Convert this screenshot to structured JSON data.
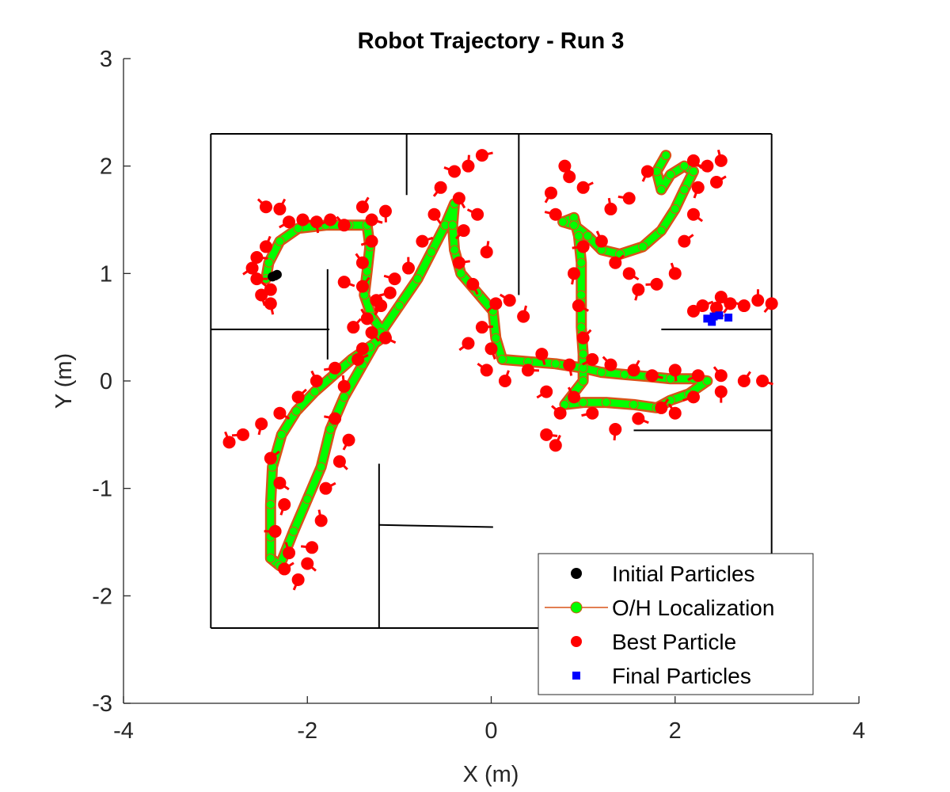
{
  "chart_data": {
    "type": "scatter",
    "title": "Robot Trajectory - Run 3",
    "xlabel": "X (m)",
    "ylabel": "Y (m)",
    "xlim": [
      -4,
      4
    ],
    "ylim": [
      -3,
      3
    ],
    "x_ticks": [
      -4,
      -2,
      0,
      2,
      4
    ],
    "y_ticks": [
      -3,
      -2,
      -1,
      0,
      1,
      2,
      3
    ],
    "x_tick_labels": [
      "-4",
      "-2",
      "0",
      "2",
      "4"
    ],
    "y_tick_labels": [
      "-3",
      "-2",
      "-1",
      "0",
      "1",
      "2",
      "3"
    ],
    "grid": false,
    "legend_position": "bottom-right",
    "legend": [
      {
        "label": "Initial Particles",
        "marker": "circle",
        "color": "#000000"
      },
      {
        "label": "O/H Localization",
        "marker": "circle-line",
        "color": "#00ff00",
        "line_color": "#d95319"
      },
      {
        "label": "Best Particle",
        "marker": "circle",
        "color": "#ff0000"
      },
      {
        "label": "Final Particles",
        "marker": "square",
        "color": "#0000ff"
      }
    ],
    "map_walls": [
      [
        [
          -3.05,
          2.3
        ],
        [
          3.05,
          2.3
        ]
      ],
      [
        [
          3.05,
          2.3
        ],
        [
          3.05,
          -2.3
        ]
      ],
      [
        [
          3.05,
          -2.3
        ],
        [
          -3.05,
          -2.3
        ]
      ],
      [
        [
          -3.05,
          -2.3
        ],
        [
          -3.05,
          2.3
        ]
      ],
      [
        [
          -0.92,
          2.3
        ],
        [
          -0.92,
          1.73
        ]
      ],
      [
        [
          0.3,
          2.3
        ],
        [
          0.3,
          0.8
        ]
      ],
      [
        [
          -3.05,
          0.48
        ],
        [
          -1.76,
          0.48
        ]
      ],
      [
        [
          -1.78,
          1.04
        ],
        [
          -1.78,
          0.2
        ]
      ],
      [
        [
          1.85,
          0.48
        ],
        [
          3.05,
          0.48
        ]
      ],
      [
        [
          1.55,
          -0.46
        ],
        [
          3.05,
          -0.46
        ]
      ],
      [
        [
          -1.22,
          -0.77
        ],
        [
          -1.22,
          -2.3
        ]
      ],
      [
        [
          -1.22,
          -1.34
        ],
        [
          0.02,
          -1.36
        ]
      ]
    ],
    "series": [
      {
        "name": "Initial Particles",
        "points": [
          [
            -2.35,
            0.98
          ],
          [
            -2.38,
            0.97
          ],
          [
            -2.33,
            0.99
          ]
        ]
      },
      {
        "name": "O/H Localization",
        "points": [
          [
            -2.45,
            0.95
          ],
          [
            -2.42,
            1.1
          ],
          [
            -2.3,
            1.3
          ],
          [
            -2.1,
            1.42
          ],
          [
            -1.8,
            1.45
          ],
          [
            -1.55,
            1.45
          ],
          [
            -1.35,
            1.45
          ],
          [
            -1.32,
            1.25
          ],
          [
            -1.35,
            1.02
          ],
          [
            -1.38,
            0.8
          ],
          [
            -1.3,
            0.6
          ],
          [
            -1.15,
            0.42
          ],
          [
            -1.32,
            0.32
          ],
          [
            -1.52,
            0.2
          ],
          [
            -1.72,
            0.05
          ],
          [
            -1.92,
            -0.1
          ],
          [
            -2.12,
            -0.28
          ],
          [
            -2.28,
            -0.5
          ],
          [
            -2.38,
            -0.8
          ],
          [
            -2.4,
            -1.15
          ],
          [
            -2.4,
            -1.45
          ],
          [
            -2.4,
            -1.65
          ],
          [
            -2.3,
            -1.72
          ],
          [
            -2.15,
            -1.4
          ],
          [
            -2.0,
            -1.1
          ],
          [
            -1.85,
            -0.8
          ],
          [
            -1.75,
            -0.45
          ],
          [
            -1.6,
            -0.15
          ],
          [
            -1.4,
            0.15
          ],
          [
            -1.2,
            0.45
          ],
          [
            -1.0,
            0.7
          ],
          [
            -0.8,
            0.95
          ],
          [
            -0.65,
            1.2
          ],
          [
            -0.5,
            1.45
          ],
          [
            -0.4,
            1.65
          ],
          [
            -0.42,
            1.45
          ],
          [
            -0.4,
            1.22
          ],
          [
            -0.33,
            1.0
          ],
          [
            -0.15,
            0.82
          ],
          [
            0.02,
            0.65
          ],
          [
            0.05,
            0.4
          ],
          [
            0.12,
            0.2
          ],
          [
            0.4,
            0.18
          ],
          [
            0.7,
            0.16
          ],
          [
            1.0,
            0.12
          ],
          [
            1.2,
            0.08
          ],
          [
            1.45,
            0.06
          ],
          [
            1.72,
            0.04
          ],
          [
            1.95,
            0.02
          ],
          [
            2.2,
            0.02
          ],
          [
            2.35,
            0.0
          ],
          [
            2.15,
            -0.12
          ],
          [
            1.95,
            -0.18
          ],
          [
            1.8,
            -0.25
          ],
          [
            1.55,
            -0.22
          ],
          [
            1.25,
            -0.2
          ],
          [
            1.0,
            -0.2
          ],
          [
            0.8,
            -0.22
          ],
          [
            1.0,
            0.0
          ],
          [
            1.0,
            0.25
          ],
          [
            0.98,
            0.5
          ],
          [
            0.98,
            0.8
          ],
          [
            0.98,
            1.1
          ],
          [
            0.95,
            1.35
          ],
          [
            0.9,
            1.52
          ],
          [
            0.78,
            1.48
          ],
          [
            0.9,
            1.45
          ],
          [
            1.05,
            1.35
          ],
          [
            1.2,
            1.22
          ],
          [
            1.4,
            1.18
          ],
          [
            1.65,
            1.25
          ],
          [
            1.85,
            1.4
          ],
          [
            2.0,
            1.6
          ],
          [
            2.1,
            1.78
          ],
          [
            2.2,
            1.95
          ],
          [
            2.1,
            2.0
          ],
          [
            1.95,
            1.92
          ],
          [
            1.85,
            1.78
          ],
          [
            1.8,
            1.95
          ],
          [
            1.9,
            2.1
          ]
        ]
      },
      {
        "name": "Best Particle",
        "points": [
          [
            -2.55,
            0.95
          ],
          [
            -2.5,
            0.8
          ],
          [
            -2.6,
            1.05
          ],
          [
            -2.4,
            0.85
          ],
          [
            -2.45,
            1.25
          ],
          [
            -2.55,
            1.15
          ],
          [
            -2.4,
            0.72
          ],
          [
            -2.2,
            1.48
          ],
          [
            -2.45,
            1.62
          ],
          [
            -2.3,
            1.6
          ],
          [
            -2.05,
            1.5
          ],
          [
            -1.9,
            1.48
          ],
          [
            -1.75,
            1.5
          ],
          [
            -1.6,
            1.45
          ],
          [
            -1.4,
            1.62
          ],
          [
            -1.3,
            1.5
          ],
          [
            -1.15,
            1.58
          ],
          [
            -1.3,
            1.3
          ],
          [
            -1.4,
            1.1
          ],
          [
            -1.4,
            0.88
          ],
          [
            -1.6,
            0.92
          ],
          [
            -1.25,
            0.75
          ],
          [
            -1.1,
            0.82
          ],
          [
            -1.35,
            0.58
          ],
          [
            -1.5,
            0.5
          ],
          [
            -1.15,
            0.4
          ],
          [
            -1.4,
            0.3
          ],
          [
            -1.7,
            0.12
          ],
          [
            -1.9,
            0.0
          ],
          [
            -2.1,
            -0.15
          ],
          [
            -2.3,
            -0.3
          ],
          [
            -2.5,
            -0.4
          ],
          [
            -2.7,
            -0.5
          ],
          [
            -2.85,
            -0.57
          ],
          [
            -2.4,
            -0.72
          ],
          [
            -2.3,
            -0.95
          ],
          [
            -2.25,
            -1.15
          ],
          [
            -2.35,
            -1.4
          ],
          [
            -2.2,
            -1.6
          ],
          [
            -2.25,
            -1.75
          ],
          [
            -2.0,
            -1.7
          ],
          [
            -2.1,
            -1.85
          ],
          [
            -1.95,
            -1.55
          ],
          [
            -1.85,
            -1.3
          ],
          [
            -1.8,
            -1.0
          ],
          [
            -1.65,
            -0.75
          ],
          [
            -1.55,
            -0.55
          ],
          [
            -1.7,
            -0.35
          ],
          [
            -1.6,
            -0.05
          ],
          [
            -1.45,
            0.2
          ],
          [
            -1.3,
            0.45
          ],
          [
            -1.2,
            0.7
          ],
          [
            -1.05,
            0.95
          ],
          [
            -0.9,
            1.05
          ],
          [
            -0.75,
            1.3
          ],
          [
            -0.62,
            1.55
          ],
          [
            -0.55,
            1.8
          ],
          [
            -0.4,
            1.95
          ],
          [
            -0.25,
            2.0
          ],
          [
            -0.1,
            2.1
          ],
          [
            -0.35,
            1.7
          ],
          [
            -0.3,
            1.4
          ],
          [
            -0.15,
            1.55
          ],
          [
            -0.05,
            1.2
          ],
          [
            -0.35,
            1.1
          ],
          [
            -0.2,
            0.9
          ],
          [
            0.05,
            0.72
          ],
          [
            0.2,
            0.75
          ],
          [
            0.35,
            0.6
          ],
          [
            -0.1,
            0.5
          ],
          [
            0.0,
            0.3
          ],
          [
            -0.25,
            0.35
          ],
          [
            -0.05,
            0.1
          ],
          [
            0.15,
            0.0
          ],
          [
            0.4,
            0.1
          ],
          [
            0.55,
            0.25
          ],
          [
            0.6,
            -0.1
          ],
          [
            0.75,
            -0.3
          ],
          [
            0.7,
            -0.6
          ],
          [
            0.6,
            -0.5
          ],
          [
            0.85,
            0.15
          ],
          [
            1.1,
            0.2
          ],
          [
            1.3,
            0.15
          ],
          [
            1.55,
            0.1
          ],
          [
            1.75,
            0.05
          ],
          [
            2.0,
            0.1
          ],
          [
            2.25,
            0.05
          ],
          [
            2.5,
            0.05
          ],
          [
            2.75,
            0.0
          ],
          [
            2.95,
            0.0
          ],
          [
            2.5,
            -0.1
          ],
          [
            2.2,
            -0.15
          ],
          [
            2.0,
            -0.3
          ],
          [
            1.85,
            -0.25
          ],
          [
            1.6,
            -0.35
          ],
          [
            1.35,
            -0.45
          ],
          [
            1.1,
            -0.3
          ],
          [
            0.9,
            -0.15
          ],
          [
            1.0,
            0.4
          ],
          [
            0.95,
            0.7
          ],
          [
            0.9,
            1.0
          ],
          [
            1.0,
            1.25
          ],
          [
            1.2,
            1.3
          ],
          [
            1.35,
            1.1
          ],
          [
            1.5,
            1.0
          ],
          [
            1.6,
            0.85
          ],
          [
            1.8,
            0.9
          ],
          [
            2.0,
            1.0
          ],
          [
            2.1,
            1.3
          ],
          [
            2.2,
            1.55
          ],
          [
            2.25,
            1.8
          ],
          [
            2.35,
            2.0
          ],
          [
            2.5,
            2.05
          ],
          [
            2.45,
            1.85
          ],
          [
            2.2,
            2.05
          ],
          [
            1.7,
            1.95
          ],
          [
            1.5,
            1.7
          ],
          [
            1.3,
            1.6
          ],
          [
            1.0,
            1.8
          ],
          [
            0.8,
            2.0
          ],
          [
            0.65,
            1.75
          ],
          [
            0.7,
            1.55
          ],
          [
            0.85,
            1.9
          ],
          [
            2.3,
            0.7
          ],
          [
            2.45,
            0.68
          ],
          [
            2.6,
            0.72
          ],
          [
            2.75,
            0.7
          ],
          [
            2.9,
            0.75
          ],
          [
            2.2,
            0.65
          ],
          [
            2.5,
            0.78
          ],
          [
            3.05,
            0.72
          ]
        ]
      },
      {
        "name": "Final Particles",
        "points": [
          [
            2.35,
            0.58
          ],
          [
            2.42,
            0.6
          ],
          [
            2.48,
            0.61
          ],
          [
            2.58,
            0.59
          ],
          [
            2.4,
            0.55
          ]
        ]
      }
    ]
  }
}
